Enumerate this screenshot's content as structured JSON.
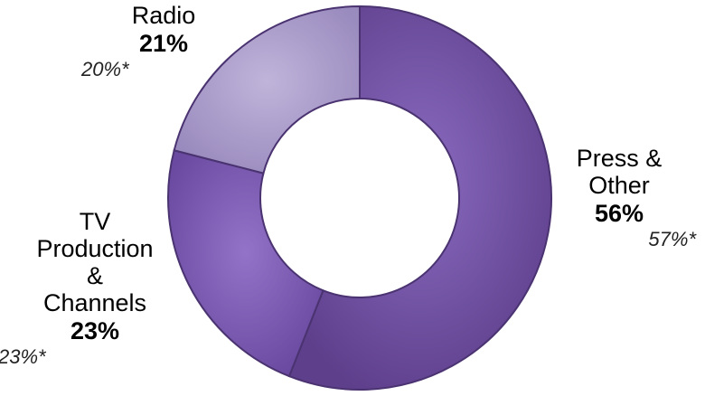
{
  "chart_data": {
    "type": "pie",
    "variant": "donut",
    "start_angle_deg": 0,
    "direction": "clockwise",
    "slices": [
      {
        "key": "press",
        "label_lines": [
          "Press &",
          "Other"
        ],
        "value": 56,
        "value_label": "56%",
        "comparison_label": "57%*",
        "color": "#6B4A9B"
      },
      {
        "key": "tv",
        "label_lines": [
          "TV",
          "Production",
          "&",
          "Channels"
        ],
        "value": 23,
        "value_label": "23%",
        "comparison_label": "23%*",
        "color": "#7B5BB2"
      },
      {
        "key": "radio",
        "label_lines": [
          "Radio"
        ],
        "value": 21,
        "value_label": "21%",
        "comparison_label": "20%*",
        "color": "#A395C4"
      }
    ],
    "edge_color": "#4A3370",
    "background": "#FFFFFF"
  }
}
